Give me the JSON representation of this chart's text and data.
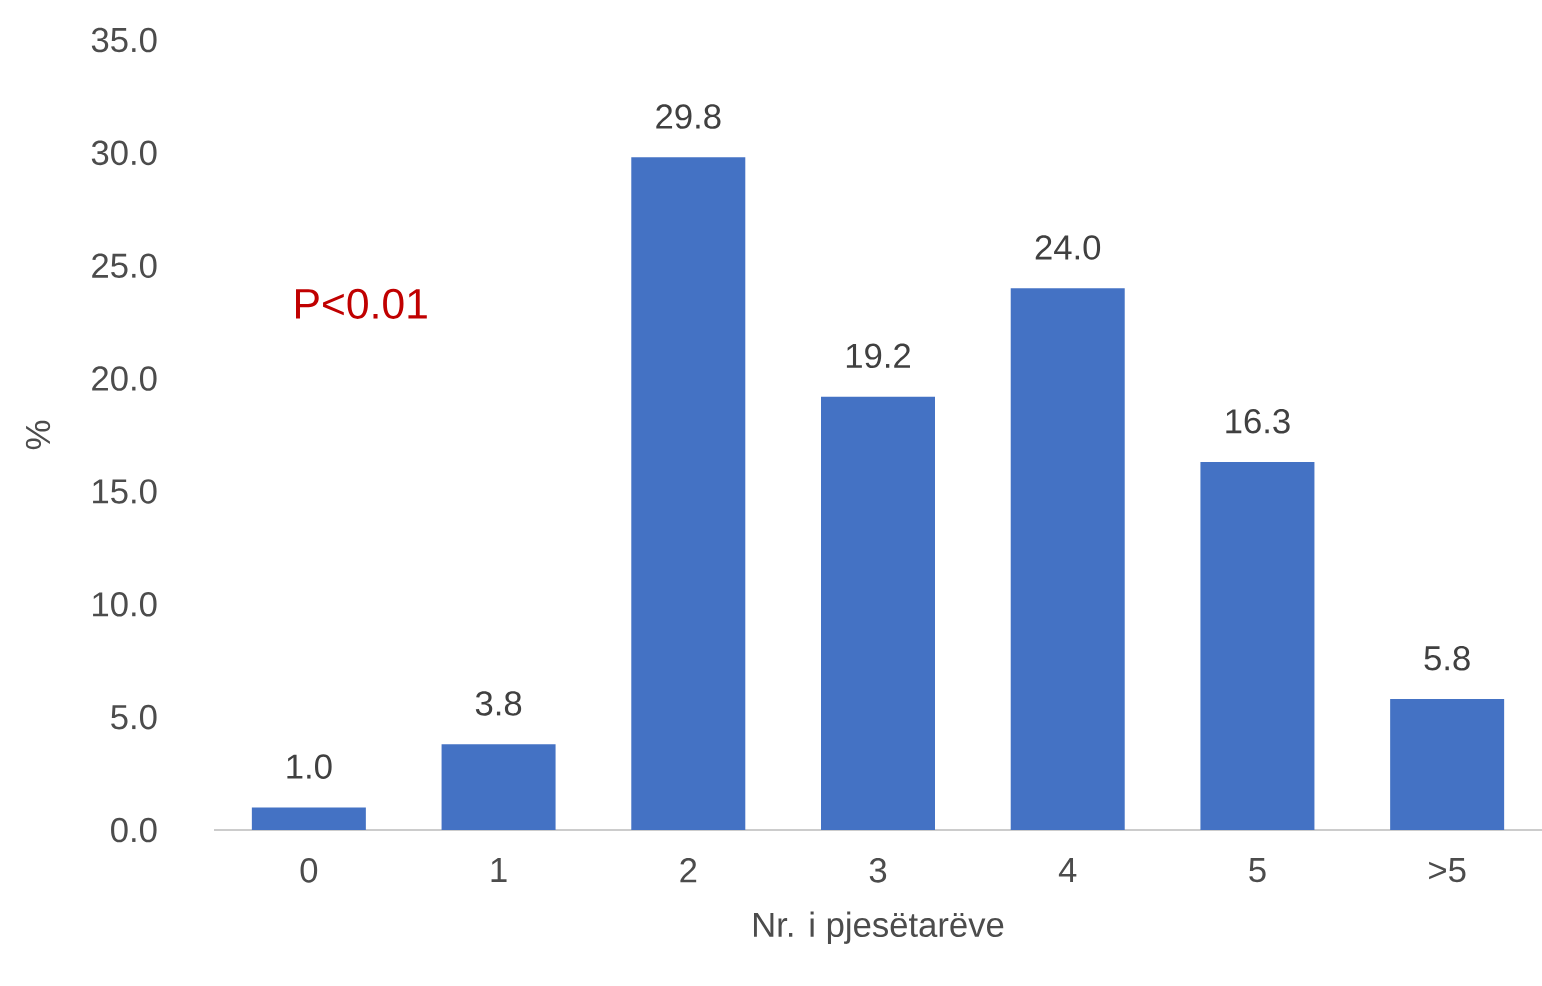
{
  "chart_data": {
    "type": "bar",
    "xlabel": "Nr. i pjesëtarëve",
    "ylabel": "%",
    "categories": [
      "0",
      "1",
      "2",
      "3",
      "4",
      "5",
      ">5"
    ],
    "values": [
      1.0,
      3.8,
      29.8,
      19.2,
      24.0,
      16.3,
      5.8
    ],
    "value_labels": [
      "1.0",
      "3.8",
      "29.8",
      "19.2",
      "24.0",
      "16.3",
      "5.8"
    ],
    "color": "#4472c4",
    "ylim": [
      0,
      35
    ],
    "yticks": [
      {
        "value": 0,
        "label": "0.0"
      },
      {
        "value": 5,
        "label": "5.0"
      },
      {
        "value": 10,
        "label": "10.0"
      },
      {
        "value": 15,
        "label": "15.0"
      },
      {
        "value": 20,
        "label": "20.0"
      },
      {
        "value": 25,
        "label": "25.0"
      },
      {
        "value": 30,
        "label": "30.0"
      },
      {
        "value": 35,
        "label": "35.0"
      }
    ],
    "annotations": [
      "P<0.01"
    ]
  }
}
